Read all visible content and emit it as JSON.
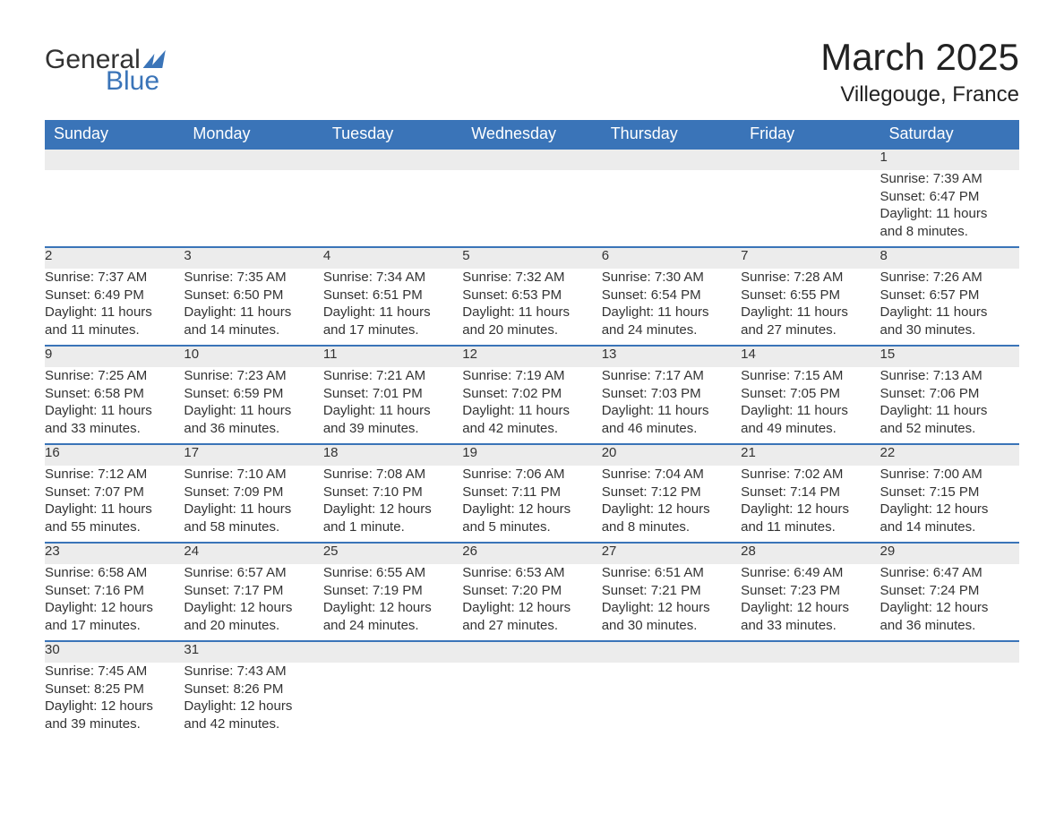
{
  "brand": {
    "word1": "General",
    "word2": "Blue"
  },
  "title": {
    "month": "March 2025",
    "location": "Villegouge, France"
  },
  "colors": {
    "header_bg": "#3a74b8",
    "header_text": "#ffffff",
    "daynum_bg": "#ececec",
    "border": "#3a74b8",
    "body_text": "#333333"
  },
  "day_headers": [
    "Sunday",
    "Monday",
    "Tuesday",
    "Wednesday",
    "Thursday",
    "Friday",
    "Saturday"
  ],
  "weeks": [
    [
      null,
      null,
      null,
      null,
      null,
      null,
      {
        "n": "1",
        "sunrise": "Sunrise: 7:39 AM",
        "sunset": "Sunset: 6:47 PM",
        "dl1": "Daylight: 11 hours",
        "dl2": "and 8 minutes."
      }
    ],
    [
      {
        "n": "2",
        "sunrise": "Sunrise: 7:37 AM",
        "sunset": "Sunset: 6:49 PM",
        "dl1": "Daylight: 11 hours",
        "dl2": "and 11 minutes."
      },
      {
        "n": "3",
        "sunrise": "Sunrise: 7:35 AM",
        "sunset": "Sunset: 6:50 PM",
        "dl1": "Daylight: 11 hours",
        "dl2": "and 14 minutes."
      },
      {
        "n": "4",
        "sunrise": "Sunrise: 7:34 AM",
        "sunset": "Sunset: 6:51 PM",
        "dl1": "Daylight: 11 hours",
        "dl2": "and 17 minutes."
      },
      {
        "n": "5",
        "sunrise": "Sunrise: 7:32 AM",
        "sunset": "Sunset: 6:53 PM",
        "dl1": "Daylight: 11 hours",
        "dl2": "and 20 minutes."
      },
      {
        "n": "6",
        "sunrise": "Sunrise: 7:30 AM",
        "sunset": "Sunset: 6:54 PM",
        "dl1": "Daylight: 11 hours",
        "dl2": "and 24 minutes."
      },
      {
        "n": "7",
        "sunrise": "Sunrise: 7:28 AM",
        "sunset": "Sunset: 6:55 PM",
        "dl1": "Daylight: 11 hours",
        "dl2": "and 27 minutes."
      },
      {
        "n": "8",
        "sunrise": "Sunrise: 7:26 AM",
        "sunset": "Sunset: 6:57 PM",
        "dl1": "Daylight: 11 hours",
        "dl2": "and 30 minutes."
      }
    ],
    [
      {
        "n": "9",
        "sunrise": "Sunrise: 7:25 AM",
        "sunset": "Sunset: 6:58 PM",
        "dl1": "Daylight: 11 hours",
        "dl2": "and 33 minutes."
      },
      {
        "n": "10",
        "sunrise": "Sunrise: 7:23 AM",
        "sunset": "Sunset: 6:59 PM",
        "dl1": "Daylight: 11 hours",
        "dl2": "and 36 minutes."
      },
      {
        "n": "11",
        "sunrise": "Sunrise: 7:21 AM",
        "sunset": "Sunset: 7:01 PM",
        "dl1": "Daylight: 11 hours",
        "dl2": "and 39 minutes."
      },
      {
        "n": "12",
        "sunrise": "Sunrise: 7:19 AM",
        "sunset": "Sunset: 7:02 PM",
        "dl1": "Daylight: 11 hours",
        "dl2": "and 42 minutes."
      },
      {
        "n": "13",
        "sunrise": "Sunrise: 7:17 AM",
        "sunset": "Sunset: 7:03 PM",
        "dl1": "Daylight: 11 hours",
        "dl2": "and 46 minutes."
      },
      {
        "n": "14",
        "sunrise": "Sunrise: 7:15 AM",
        "sunset": "Sunset: 7:05 PM",
        "dl1": "Daylight: 11 hours",
        "dl2": "and 49 minutes."
      },
      {
        "n": "15",
        "sunrise": "Sunrise: 7:13 AM",
        "sunset": "Sunset: 7:06 PM",
        "dl1": "Daylight: 11 hours",
        "dl2": "and 52 minutes."
      }
    ],
    [
      {
        "n": "16",
        "sunrise": "Sunrise: 7:12 AM",
        "sunset": "Sunset: 7:07 PM",
        "dl1": "Daylight: 11 hours",
        "dl2": "and 55 minutes."
      },
      {
        "n": "17",
        "sunrise": "Sunrise: 7:10 AM",
        "sunset": "Sunset: 7:09 PM",
        "dl1": "Daylight: 11 hours",
        "dl2": "and 58 minutes."
      },
      {
        "n": "18",
        "sunrise": "Sunrise: 7:08 AM",
        "sunset": "Sunset: 7:10 PM",
        "dl1": "Daylight: 12 hours",
        "dl2": "and 1 minute."
      },
      {
        "n": "19",
        "sunrise": "Sunrise: 7:06 AM",
        "sunset": "Sunset: 7:11 PM",
        "dl1": "Daylight: 12 hours",
        "dl2": "and 5 minutes."
      },
      {
        "n": "20",
        "sunrise": "Sunrise: 7:04 AM",
        "sunset": "Sunset: 7:12 PM",
        "dl1": "Daylight: 12 hours",
        "dl2": "and 8 minutes."
      },
      {
        "n": "21",
        "sunrise": "Sunrise: 7:02 AM",
        "sunset": "Sunset: 7:14 PM",
        "dl1": "Daylight: 12 hours",
        "dl2": "and 11 minutes."
      },
      {
        "n": "22",
        "sunrise": "Sunrise: 7:00 AM",
        "sunset": "Sunset: 7:15 PM",
        "dl1": "Daylight: 12 hours",
        "dl2": "and 14 minutes."
      }
    ],
    [
      {
        "n": "23",
        "sunrise": "Sunrise: 6:58 AM",
        "sunset": "Sunset: 7:16 PM",
        "dl1": "Daylight: 12 hours",
        "dl2": "and 17 minutes."
      },
      {
        "n": "24",
        "sunrise": "Sunrise: 6:57 AM",
        "sunset": "Sunset: 7:17 PM",
        "dl1": "Daylight: 12 hours",
        "dl2": "and 20 minutes."
      },
      {
        "n": "25",
        "sunrise": "Sunrise: 6:55 AM",
        "sunset": "Sunset: 7:19 PM",
        "dl1": "Daylight: 12 hours",
        "dl2": "and 24 minutes."
      },
      {
        "n": "26",
        "sunrise": "Sunrise: 6:53 AM",
        "sunset": "Sunset: 7:20 PM",
        "dl1": "Daylight: 12 hours",
        "dl2": "and 27 minutes."
      },
      {
        "n": "27",
        "sunrise": "Sunrise: 6:51 AM",
        "sunset": "Sunset: 7:21 PM",
        "dl1": "Daylight: 12 hours",
        "dl2": "and 30 minutes."
      },
      {
        "n": "28",
        "sunrise": "Sunrise: 6:49 AM",
        "sunset": "Sunset: 7:23 PM",
        "dl1": "Daylight: 12 hours",
        "dl2": "and 33 minutes."
      },
      {
        "n": "29",
        "sunrise": "Sunrise: 6:47 AM",
        "sunset": "Sunset: 7:24 PM",
        "dl1": "Daylight: 12 hours",
        "dl2": "and 36 minutes."
      }
    ],
    [
      {
        "n": "30",
        "sunrise": "Sunrise: 7:45 AM",
        "sunset": "Sunset: 8:25 PM",
        "dl1": "Daylight: 12 hours",
        "dl2": "and 39 minutes."
      },
      {
        "n": "31",
        "sunrise": "Sunrise: 7:43 AM",
        "sunset": "Sunset: 8:26 PM",
        "dl1": "Daylight: 12 hours",
        "dl2": "and 42 minutes."
      },
      null,
      null,
      null,
      null,
      null
    ]
  ]
}
